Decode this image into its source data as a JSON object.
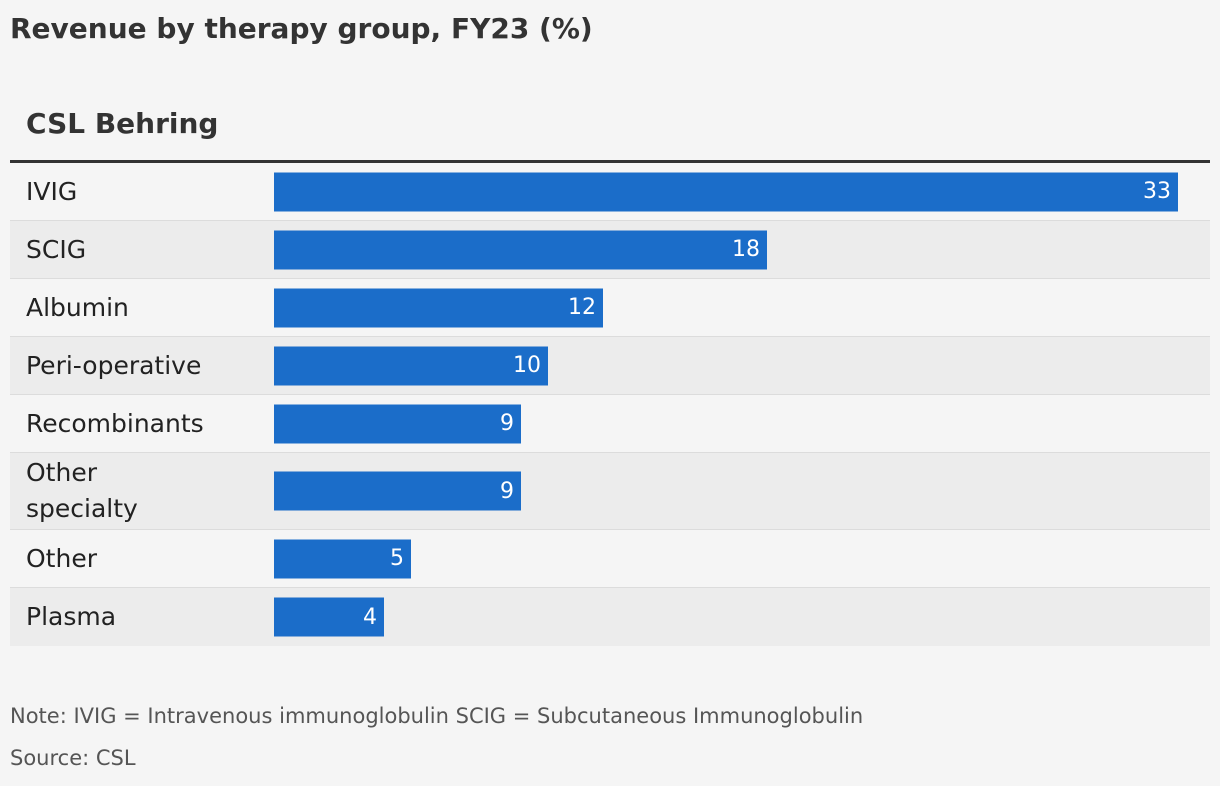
{
  "title": "Revenue by therapy group, FY23 (%)",
  "note": "Note: IVIG = Intravenous immunoglobulin SCIG = Subcutaneous Immunoglobulin",
  "source": "Source: CSL",
  "colors": {
    "bar": "#1b6dc9",
    "background": "#f5f5f5",
    "alt_row": "#ececec",
    "text": "#333333"
  },
  "chart_data": {
    "type": "bar",
    "orientation": "horizontal",
    "title": "Revenue by therapy group, FY23 (%)",
    "subtitle": "CSL Behring",
    "categories": [
      "IVIG",
      "SCIG",
      "Albumin",
      "Peri-operative",
      "Recombinants",
      "Other specialty",
      "Other",
      "Plasma"
    ],
    "values": [
      33,
      18,
      12,
      10,
      9,
      9,
      5,
      4
    ],
    "xlim": [
      0,
      33
    ],
    "grid": false,
    "data_labels": "inside-end"
  }
}
